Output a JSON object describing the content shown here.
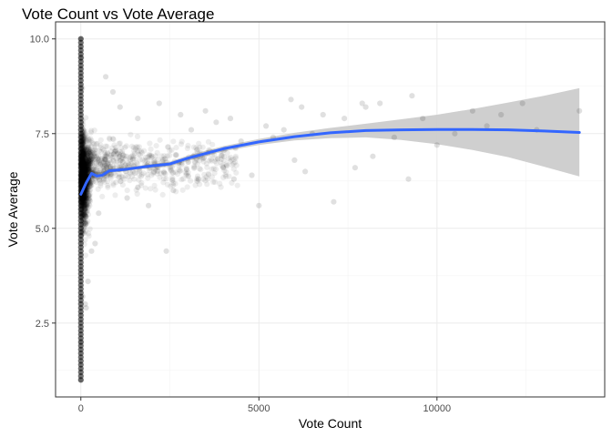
{
  "chart_data": {
    "type": "scatter",
    "title": "Vote Count vs Vote Average",
    "xlabel": "Vote Count",
    "ylabel": "Vote Average",
    "xlim": [
      -710,
      14710
    ],
    "ylim": [
      0.55,
      10.45
    ],
    "x_ticks": [
      0,
      5000,
      10000
    ],
    "x_tick_labels": [
      "0",
      "5000",
      "10000"
    ],
    "y_ticks": [
      2.5,
      5.0,
      7.5,
      10.0
    ],
    "y_tick_labels": [
      "2.5",
      "5.0",
      "7.5",
      "10.0"
    ],
    "grid": true,
    "legend": "none",
    "point_color": "#000000",
    "point_alpha": 0.07,
    "smooth_color": "#3366FF",
    "ribbon_color": "#cccccc",
    "smooth_line": [
      [
        0,
        5.9
      ],
      [
        150,
        6.2
      ],
      [
        300,
        6.45
      ],
      [
        450,
        6.38
      ],
      [
        600,
        6.4
      ],
      [
        800,
        6.52
      ],
      [
        1200,
        6.55
      ],
      [
        1600,
        6.6
      ],
      [
        2000,
        6.65
      ],
      [
        2500,
        6.7
      ],
      [
        3000,
        6.85
      ],
      [
        4000,
        7.1
      ],
      [
        5000,
        7.28
      ],
      [
        6000,
        7.42
      ],
      [
        7000,
        7.52
      ],
      [
        8000,
        7.58
      ],
      [
        9000,
        7.6
      ],
      [
        10000,
        7.61
      ],
      [
        11000,
        7.61
      ],
      [
        12000,
        7.6
      ],
      [
        13000,
        7.57
      ],
      [
        14000,
        7.53
      ]
    ],
    "ribbon_upper": [
      [
        0,
        6.05
      ],
      [
        150,
        6.3
      ],
      [
        300,
        6.55
      ],
      [
        450,
        6.48
      ],
      [
        600,
        6.48
      ],
      [
        800,
        6.58
      ],
      [
        1200,
        6.6
      ],
      [
        1600,
        6.65
      ],
      [
        2000,
        6.7
      ],
      [
        2500,
        6.76
      ],
      [
        3000,
        6.92
      ],
      [
        4000,
        7.17
      ],
      [
        5000,
        7.36
      ],
      [
        6000,
        7.52
      ],
      [
        7000,
        7.65
      ],
      [
        8000,
        7.76
      ],
      [
        9000,
        7.88
      ],
      [
        10000,
        8.0
      ],
      [
        11000,
        8.15
      ],
      [
        12000,
        8.32
      ],
      [
        13000,
        8.5
      ],
      [
        14000,
        8.7
      ]
    ],
    "ribbon_lower": [
      [
        0,
        5.75
      ],
      [
        150,
        6.1
      ],
      [
        300,
        6.35
      ],
      [
        450,
        6.28
      ],
      [
        600,
        6.32
      ],
      [
        800,
        6.46
      ],
      [
        1200,
        6.5
      ],
      [
        1600,
        6.55
      ],
      [
        2000,
        6.6
      ],
      [
        2500,
        6.64
      ],
      [
        3000,
        6.78
      ],
      [
        4000,
        7.03
      ],
      [
        5000,
        7.2
      ],
      [
        6000,
        7.32
      ],
      [
        7000,
        7.38
      ],
      [
        8000,
        7.4
      ],
      [
        9000,
        7.33
      ],
      [
        10000,
        7.22
      ],
      [
        11000,
        7.07
      ],
      [
        12000,
        6.88
      ],
      [
        13000,
        6.63
      ],
      [
        14000,
        6.37
      ]
    ],
    "points": [
      [
        0,
        10.0
      ],
      [
        0,
        1.0
      ],
      [
        20,
        9.5
      ],
      [
        40,
        8.7
      ],
      [
        10,
        2.0
      ],
      [
        50,
        3.2
      ],
      [
        120,
        3.0
      ],
      [
        150,
        2.9
      ],
      [
        200,
        3.6
      ],
      [
        300,
        4.4
      ],
      [
        400,
        4.6
      ],
      [
        500,
        5.4
      ],
      [
        700,
        9.0
      ],
      [
        900,
        8.6
      ],
      [
        1100,
        8.2
      ],
      [
        1300,
        5.8
      ],
      [
        1600,
        7.9
      ],
      [
        1900,
        5.6
      ],
      [
        2200,
        8.3
      ],
      [
        2400,
        4.4
      ],
      [
        2600,
        6.0
      ],
      [
        2800,
        8.0
      ],
      [
        3100,
        7.6
      ],
      [
        3300,
        6.3
      ],
      [
        3500,
        8.1
      ],
      [
        3800,
        7.8
      ],
      [
        4000,
        6.6
      ],
      [
        4200,
        7.9
      ],
      [
        4500,
        7.3
      ],
      [
        4800,
        6.4
      ],
      [
        5000,
        5.6
      ],
      [
        5200,
        7.7
      ],
      [
        5400,
        7.4
      ],
      [
        5700,
        7.6
      ],
      [
        6000,
        6.8
      ],
      [
        6200,
        8.2
      ],
      [
        6500,
        7.5
      ],
      [
        6800,
        8.0
      ],
      [
        7100,
        5.7
      ],
      [
        7400,
        7.9
      ],
      [
        7700,
        6.6
      ],
      [
        8000,
        8.2
      ],
      [
        8400,
        8.3
      ],
      [
        8800,
        7.4
      ],
      [
        9200,
        6.3
      ],
      [
        9600,
        7.9
      ],
      [
        10000,
        7.2
      ],
      [
        10500,
        7.5
      ],
      [
        11000,
        8.1
      ],
      [
        11400,
        7.7
      ],
      [
        11800,
        8.0
      ],
      [
        12400,
        8.3
      ],
      [
        12800,
        7.6
      ],
      [
        14000,
        8.1
      ],
      [
        9300,
        8.5
      ],
      [
        8200,
        6.9
      ],
      [
        7900,
        8.3
      ],
      [
        6300,
        6.5
      ],
      [
        5900,
        8.4
      ],
      [
        4300,
        6.3
      ]
    ]
  }
}
